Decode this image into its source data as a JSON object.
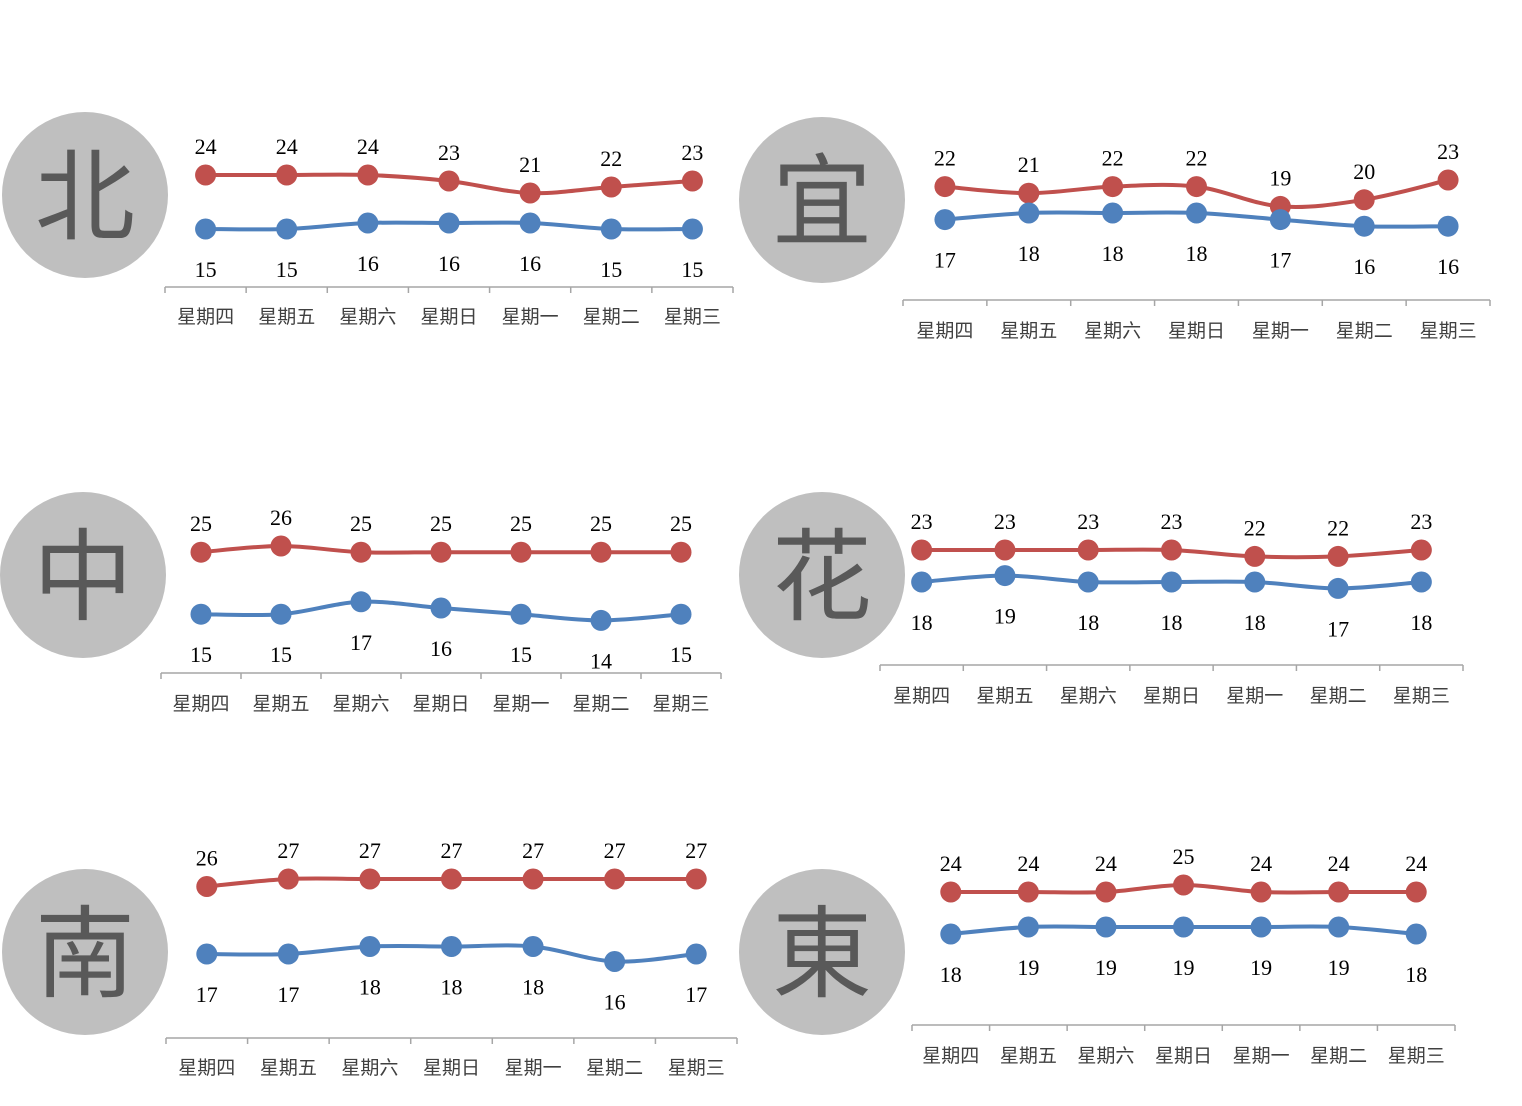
{
  "colors": {
    "high": "#c0504d",
    "low": "#4f81bd",
    "axis": "#a6a6a6",
    "circle": "#bfbfbf"
  },
  "chart_data": [
    {
      "type": "line",
      "region": "北",
      "categories": [
        "星期四",
        "星期五",
        "星期六",
        "星期日",
        "星期一",
        "星期二",
        "星期三"
      ],
      "series": [
        {
          "values": [
            24,
            24,
            24,
            23,
            21,
            22,
            23
          ]
        },
        {
          "values": [
            15,
            15,
            16,
            16,
            16,
            15,
            15
          ]
        }
      ]
    },
    {
      "type": "line",
      "region": "宜",
      "categories": [
        "星期四",
        "星期五",
        "星期六",
        "星期日",
        "星期一",
        "星期二",
        "星期三"
      ],
      "series": [
        {
          "values": [
            22,
            21,
            22,
            22,
            19,
            20,
            23
          ]
        },
        {
          "values": [
            17,
            18,
            18,
            18,
            17,
            16,
            16
          ]
        }
      ]
    },
    {
      "type": "line",
      "region": "中",
      "categories": [
        "星期四",
        "星期五",
        "星期六",
        "星期日",
        "星期一",
        "星期二",
        "星期三"
      ],
      "series": [
        {
          "values": [
            25,
            26,
            25,
            25,
            25,
            25,
            25
          ]
        },
        {
          "values": [
            15,
            15,
            17,
            16,
            15,
            14,
            15
          ]
        }
      ]
    },
    {
      "type": "line",
      "region": "花",
      "categories": [
        "星期四",
        "星期五",
        "星期六",
        "星期日",
        "星期一",
        "星期二",
        "星期三"
      ],
      "series": [
        {
          "values": [
            23,
            23,
            23,
            23,
            22,
            22,
            23
          ]
        },
        {
          "values": [
            18,
            19,
            18,
            18,
            18,
            17,
            18
          ]
        }
      ]
    },
    {
      "type": "line",
      "region": "南",
      "categories": [
        "星期四",
        "星期五",
        "星期六",
        "星期日",
        "星期一",
        "星期二",
        "星期三"
      ],
      "series": [
        {
          "values": [
            26,
            27,
            27,
            27,
            27,
            27,
            27
          ]
        },
        {
          "values": [
            17,
            17,
            18,
            18,
            18,
            16,
            17
          ]
        }
      ]
    },
    {
      "type": "line",
      "region": "東",
      "categories": [
        "星期四",
        "星期五",
        "星期六",
        "星期日",
        "星期一",
        "星期二",
        "星期三"
      ],
      "series": [
        {
          "values": [
            24,
            24,
            24,
            25,
            24,
            24,
            24
          ]
        },
        {
          "values": [
            18,
            19,
            19,
            19,
            19,
            19,
            18
          ]
        }
      ]
    }
  ]
}
